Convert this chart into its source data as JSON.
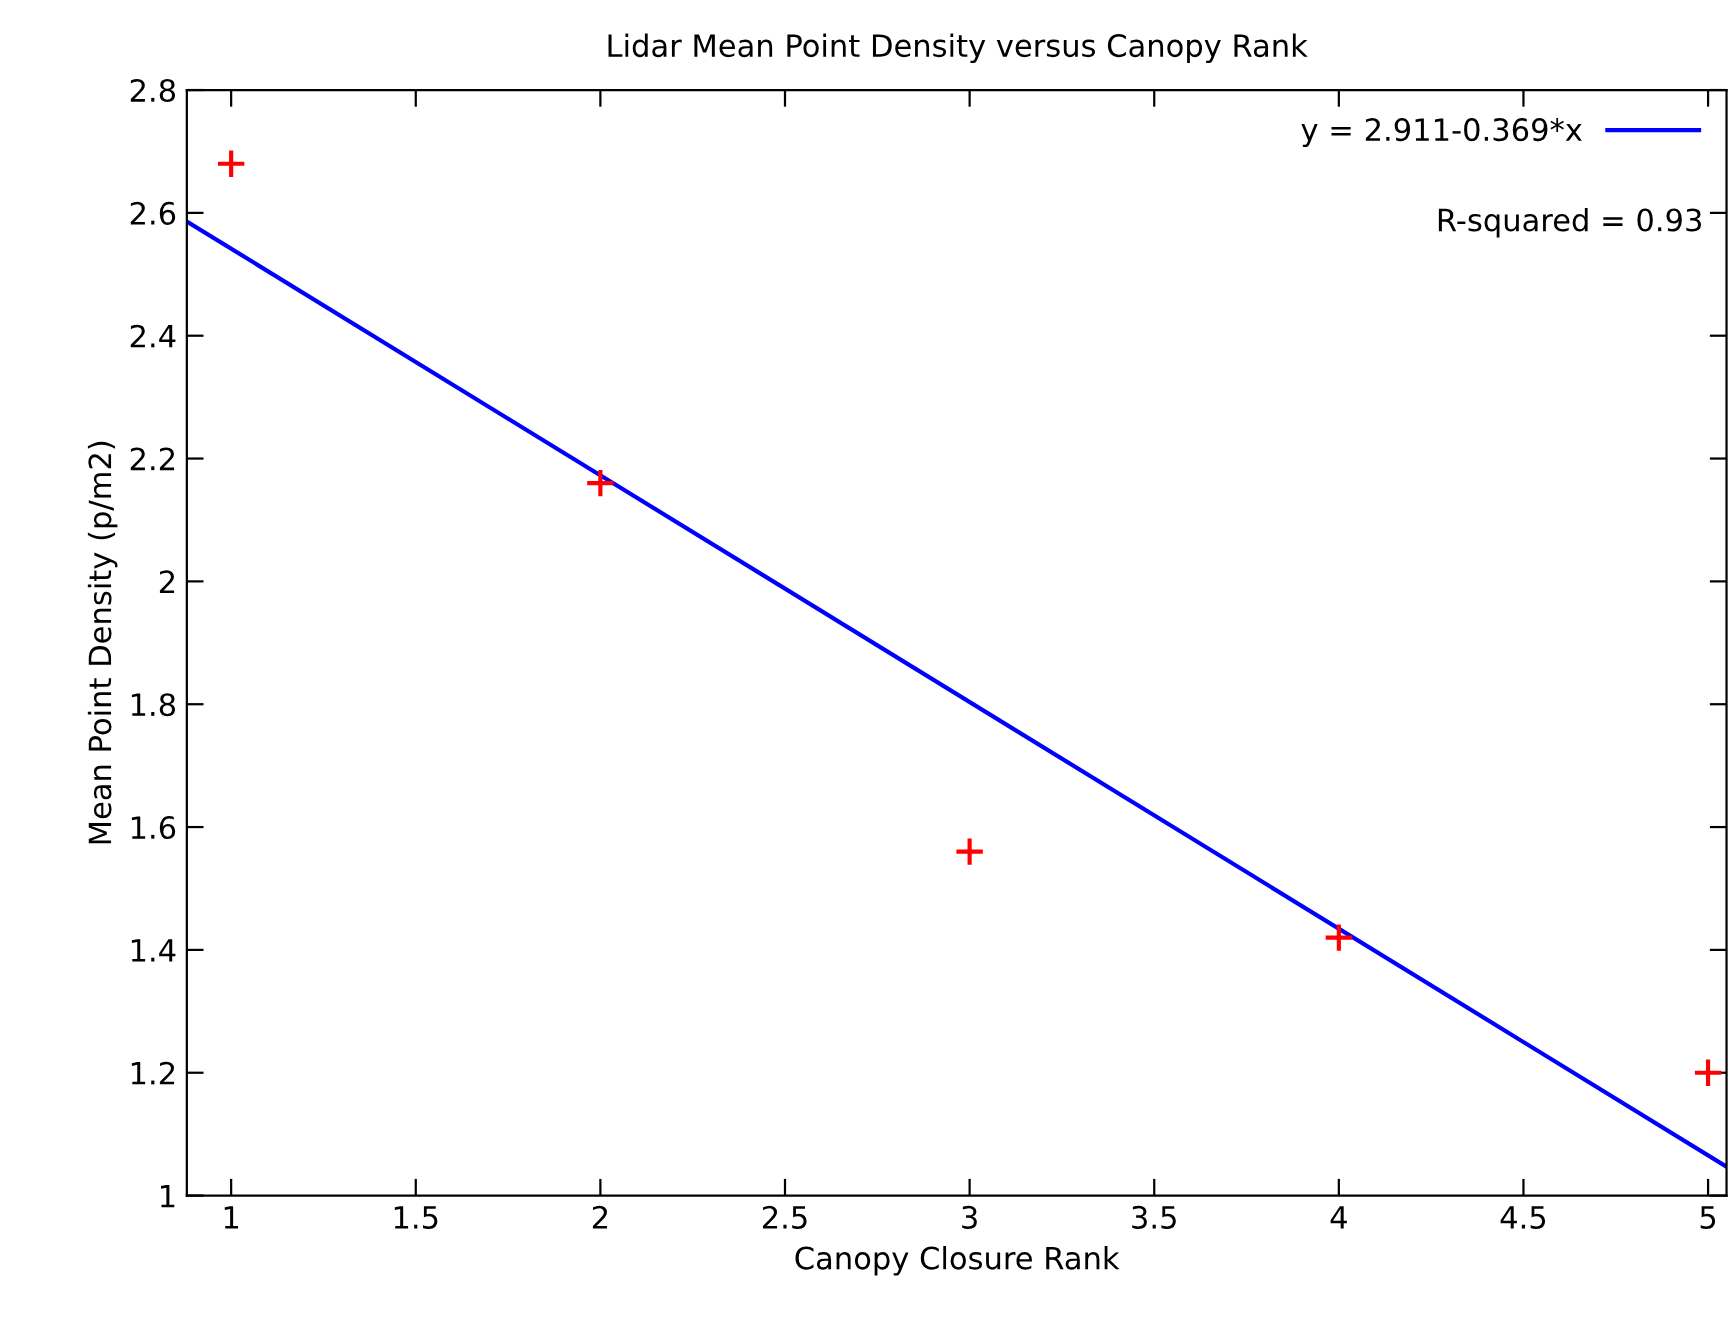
{
  "chart_data": {
    "type": "scatter",
    "title": "Lidar Mean Point Density versus Canopy Rank",
    "xlabel": "Canopy Closure Rank",
    "ylabel": "Mean Point Density (p/m2)",
    "series": [
      {
        "color": "#ff0000",
        "marker": "cross",
        "x": [
          1,
          2,
          3,
          4,
          5
        ],
        "values": [
          2.68,
          2.16,
          1.56,
          1.42,
          1.2
        ]
      },
      {
        "type": "line",
        "name": "y = 2.911-0.369*x",
        "color": "#0000ff",
        "marker": "none",
        "line_style": "solid",
        "x": [
          0.88,
          5.05
        ],
        "values": [
          2.586,
          1.047
        ]
      }
    ],
    "annotations": [
      "R-squared = 0.93"
    ],
    "xlim": [
      0.88,
      5.05
    ],
    "ylim": [
      1,
      2.8
    ],
    "xticks": [
      1,
      1.5,
      2,
      2.5,
      3,
      3.5,
      4,
      4.5,
      5
    ],
    "yticks": [
      1,
      1.2,
      1.4,
      1.6,
      1.8,
      2,
      2.2,
      2.4,
      2.6,
      2.8
    ],
    "legend": "top right"
  }
}
